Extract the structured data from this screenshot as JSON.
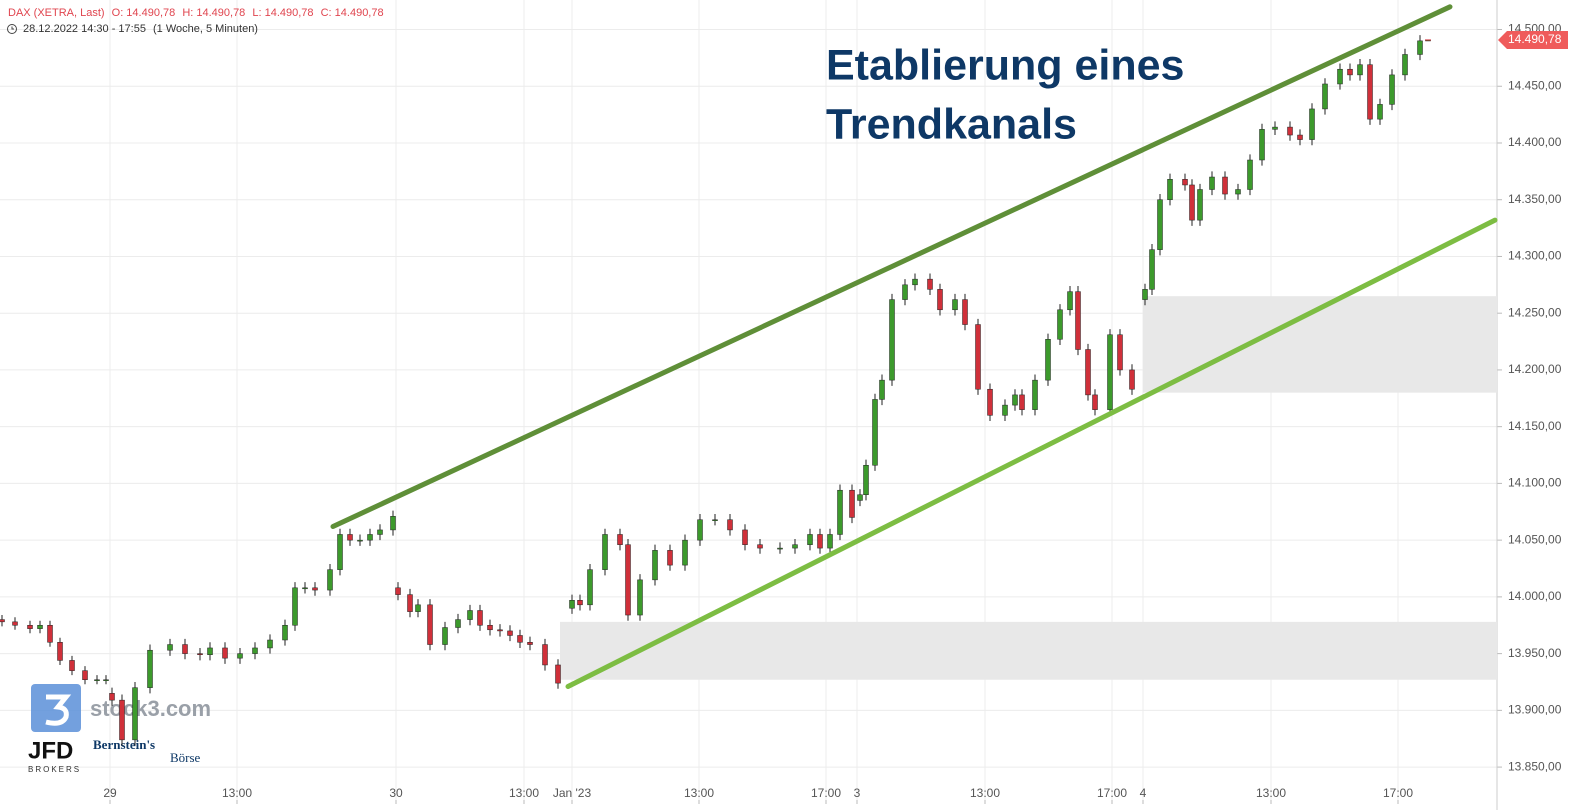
{
  "chart_data": {
    "type": "candlestick",
    "title": [
      "Etablierung eines",
      "Trendkanals"
    ],
    "instrument": "DAX (XETRA, Last)",
    "ohlc_labels": [
      "O: 14.490,78",
      "H: 14.490,78",
      "L: 14.490,78",
      "C: 14.490,78"
    ],
    "period": "28.12.2022 14:30 - 17:55",
    "interval": "(1 Woche, 5 Minuten)",
    "up_color": "#3c9a2c",
    "down_color": "#d0303a",
    "grid": true,
    "xlim": [
      0,
      1497
    ],
    "xticks": [
      {
        "value": 110,
        "label": "29"
      },
      {
        "value": 237,
        "label": "13:00"
      },
      {
        "value": 396,
        "label": "30"
      },
      {
        "value": 524,
        "label": "13:00"
      },
      {
        "value": 572,
        "label": "Jan '23"
      },
      {
        "value": 699,
        "label": "13:00"
      },
      {
        "value": 826,
        "label": "17:00"
      },
      {
        "value": 857,
        "label": "3"
      },
      {
        "value": 985,
        "label": "13:00"
      },
      {
        "value": 1112,
        "label": "17:00"
      },
      {
        "value": 1143,
        "label": "4"
      },
      {
        "value": 1271,
        "label": "13:00"
      },
      {
        "value": 1398,
        "label": "17:00"
      }
    ],
    "ylim": [
      13821,
      14526
    ],
    "yticks": [
      {
        "value": 14500,
        "label": "14.500,00"
      },
      {
        "value": 14450,
        "label": "14.450,00"
      },
      {
        "value": 14400,
        "label": "14.400,00"
      },
      {
        "value": 14350,
        "label": "14.350,00"
      },
      {
        "value": 14300,
        "label": "14.300,00"
      },
      {
        "value": 14250,
        "label": "14.250,00"
      },
      {
        "value": 14200,
        "label": "14.200,00"
      },
      {
        "value": 14150,
        "label": "14.150,00"
      },
      {
        "value": 14100,
        "label": "14.100,00"
      },
      {
        "value": 14050,
        "label": "14.050,00"
      },
      {
        "value": 14000,
        "label": "14.000,00"
      },
      {
        "value": 13950,
        "label": "13.950,00"
      },
      {
        "value": 13900,
        "label": "13.900,00"
      },
      {
        "value": 13850,
        "label": "13.850,00"
      }
    ],
    "last_price": {
      "value": 14490.78,
      "label": "14.490,78"
    },
    "x": [
      2,
      15,
      30,
      40,
      50,
      60,
      72,
      85,
      97,
      106,
      112,
      122,
      135,
      150,
      170,
      185,
      200,
      210,
      225,
      240,
      255,
      270,
      285,
      295,
      305,
      315,
      330,
      340,
      350,
      360,
      370,
      380,
      393,
      398,
      410,
      418,
      430,
      445,
      458,
      470,
      480,
      490,
      500,
      510,
      520,
      530,
      545,
      558,
      572,
      580,
      590,
      605,
      620,
      628,
      640,
      655,
      670,
      685,
      700,
      715,
      730,
      745,
      760,
      780,
      795,
      810,
      820,
      830,
      840,
      852,
      860,
      866,
      875,
      882,
      892,
      905,
      915,
      930,
      940,
      955,
      965,
      978,
      990,
      1005,
      1015,
      1022,
      1035,
      1048,
      1060,
      1070,
      1078,
      1088,
      1095,
      1110,
      1120,
      1132,
      1145,
      1152,
      1160,
      1170,
      1185,
      1192,
      1200,
      1212,
      1225,
      1238,
      1250,
      1262,
      1275,
      1290,
      1300,
      1312,
      1325,
      1340,
      1350,
      1360,
      1370,
      1380,
      1392,
      1405,
      1420,
      1428
    ],
    "open": [
      13980,
      13978,
      13975,
      13972,
      13975,
      13960,
      13944,
      13935,
      13927,
      13927,
      13915,
      13909,
      13874,
      13920,
      13953,
      13958,
      13950,
      13949,
      13955,
      13946,
      13950,
      13955,
      13962,
      13975,
      14008,
      14008,
      14006,
      14024,
      14055,
      14050,
      14050,
      14055,
      14059,
      14008,
      14002,
      13987,
      13993,
      13958,
      13973,
      13980,
      13988,
      13975,
      13971,
      13970,
      13966,
      13960,
      13958,
      13940,
      13990,
      13997,
      13993,
      14024,
      14055,
      14046,
      13984,
      14015,
      14041,
      14028,
      14050,
      14068,
      14068,
      14059,
      14046,
      14043,
      14043,
      14046,
      14055,
      14043,
      14055,
      14094,
      14085,
      14090,
      14116,
      14174,
      14191,
      14262,
      14275,
      14280,
      14271,
      14253,
      14262,
      14240,
      14183,
      14160,
      14169,
      14178,
      14165,
      14191,
      14227,
      14253,
      14269,
      14218,
      14178,
      14165,
      14231,
      14200,
      14262,
      14271,
      14306,
      14350,
      14368,
      14363,
      14332,
      14359,
      14370,
      14355,
      14359,
      14385,
      14412,
      14414,
      14407,
      14403,
      14430,
      14452,
      14465,
      14460,
      14469,
      14421,
      14434,
      14460,
      14478,
      14490.78
    ],
    "high": [
      13984,
      13982,
      13979,
      13979,
      13979,
      13964,
      13948,
      13939,
      13931,
      13931,
      13920,
      13914,
      13925,
      13958,
      13963,
      13963,
      13955,
      13960,
      13960,
      13955,
      13960,
      13967,
      13980,
      14013,
      14013,
      14013,
      14029,
      14060,
      14060,
      14055,
      14060,
      14064,
      14076,
      14013,
      14007,
      13998,
      13998,
      13978,
      13985,
      13993,
      13993,
      13980,
      13976,
      13975,
      13971,
      13965,
      13963,
      13945,
      14002,
      14002,
      14029,
      14060,
      14060,
      14051,
      14020,
      14046,
      14046,
      14055,
      14073,
      14073,
      14073,
      14064,
      14051,
      14048,
      14051,
      14060,
      14060,
      14060,
      14099,
      14099,
      14095,
      14121,
      14179,
      14196,
      14267,
      14280,
      14285,
      14285,
      14276,
      14267,
      14267,
      14245,
      14188,
      14174,
      14183,
      14183,
      14196,
      14232,
      14258,
      14274,
      14274,
      14223,
      14183,
      14236,
      14236,
      14205,
      14276,
      14311,
      14355,
      14373,
      14373,
      14368,
      14364,
      14375,
      14375,
      14364,
      14390,
      14417,
      14419,
      14419,
      14412,
      14435,
      14457,
      14470,
      14470,
      14474,
      14474,
      14439,
      14465,
      14483,
      14495,
      14490.78
    ],
    "low": [
      13974,
      13971,
      13968,
      13968,
      13956,
      13940,
      13931,
      13923,
      13923,
      13923,
      13904,
      13869,
      13869,
      13915,
      13948,
      13945,
      13944,
      13944,
      13941,
      13941,
      13945,
      13950,
      13957,
      13970,
      14003,
      14001,
      14001,
      14019,
      14045,
      14045,
      14045,
      14050,
      14054,
      13997,
      13982,
      13982,
      13953,
      13953,
      13968,
      13975,
      13970,
      13966,
      13965,
      13961,
      13955,
      13953,
      13935,
      13919,
      13985,
      13988,
      13988,
      14019,
      14041,
      13979,
      13979,
      14010,
      14023,
      14023,
      14045,
      14063,
      14054,
      14041,
      14038,
      14038,
      14038,
      14041,
      14038,
      14038,
      14050,
      14065,
      14080,
      14085,
      14111,
      14169,
      14186,
      14257,
      14270,
      14266,
      14248,
      14248,
      14235,
      14178,
      14155,
      14155,
      14164,
      14160,
      14160,
      14186,
      14222,
      14248,
      14213,
      14173,
      14160,
      14160,
      14195,
      14178,
      14257,
      14266,
      14301,
      14345,
      14358,
      14327,
      14327,
      14354,
      14350,
      14350,
      14354,
      14380,
      14407,
      14402,
      14398,
      14398,
      14425,
      14447,
      14455,
      14455,
      14416,
      14416,
      14429,
      14455,
      14473,
      14490.78
    ],
    "close": [
      13978,
      13975,
      13972,
      13975,
      13960,
      13944,
      13935,
      13927,
      13927,
      13927,
      13909,
      13874,
      13920,
      13953,
      13958,
      13950,
      13949,
      13955,
      13946,
      13950,
      13955,
      13962,
      13975,
      14008,
      14008,
      14006,
      14024,
      14055,
      14050,
      14050,
      14055,
      14059,
      14071,
      14002,
      13987,
      13993,
      13958,
      13973,
      13980,
      13988,
      13975,
      13971,
      13970,
      13966,
      13960,
      13958,
      13940,
      13924,
      13997,
      13993,
      14024,
      14055,
      14046,
      13984,
      14015,
      14041,
      14028,
      14050,
      14068,
      14068,
      14059,
      14046,
      14043,
      14043,
      14046,
      14055,
      14043,
      14055,
      14094,
      14070,
      14090,
      14116,
      14174,
      14191,
      14262,
      14275,
      14280,
      14271,
      14253,
      14262,
      14240,
      14183,
      14160,
      14169,
      14178,
      14165,
      14191,
      14227,
      14253,
      14269,
      14218,
      14178,
      14165,
      14231,
      14200,
      14183,
      14271,
      14306,
      14350,
      14368,
      14363,
      14332,
      14359,
      14370,
      14355,
      14359,
      14385,
      14412,
      14414,
      14407,
      14403,
      14430,
      14452,
      14465,
      14460,
      14469,
      14421,
      14434,
      14460,
      14478,
      14490,
      14490.78
    ],
    "trendlines": [
      {
        "x": [
          333,
          1450
        ],
        "y": [
          14062,
          14520
        ],
        "color": "#5f8f38"
      },
      {
        "x": [
          568,
          1495
        ],
        "y": [
          13921,
          14332
        ],
        "color": "#7dbd43"
      }
    ],
    "zones": [
      {
        "x": [
          560,
          1497
        ],
        "y": [
          13927,
          13978
        ],
        "color": "#e8e8e8"
      },
      {
        "x": [
          1143,
          1497
        ],
        "y": [
          14180,
          14265
        ],
        "color": "#e8e8e8"
      }
    ],
    "logos": [
      "stock3.com",
      "JFD",
      "BROKERS",
      "Bernstein's",
      "Börse"
    ]
  }
}
